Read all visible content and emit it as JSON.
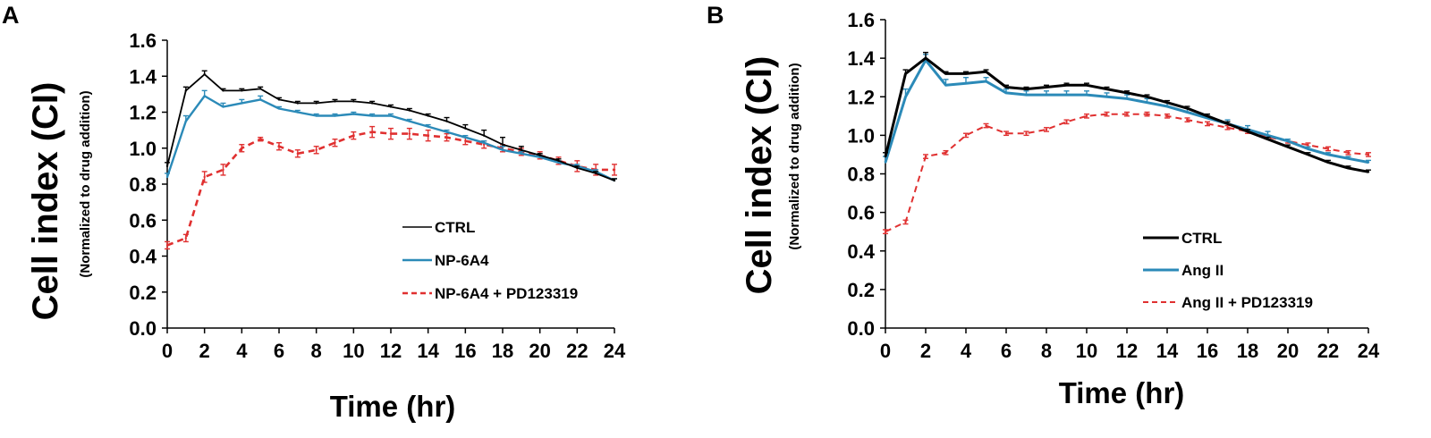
{
  "chart_data": [
    {
      "type": "line",
      "panel_label": "A",
      "xlabel": "Time (hr)",
      "ylabel": "Cell index (CI)",
      "ylabel_sub": "(Normalized to drug addition)",
      "xlim": [
        0,
        24
      ],
      "ylim": [
        0.0,
        1.6
      ],
      "xticks": [
        "0",
        "2",
        "4",
        "6",
        "8",
        "10",
        "12",
        "14",
        "16",
        "18",
        "20",
        "22",
        "24"
      ],
      "yticks": [
        "0.0",
        "0.2",
        "0.4",
        "0.6",
        "0.8",
        "1.0",
        "1.2",
        "1.4",
        "1.6"
      ],
      "legend_position": "bottom-right",
      "x": [
        0,
        1,
        2,
        3,
        4,
        5,
        6,
        7,
        8,
        9,
        10,
        11,
        12,
        13,
        14,
        15,
        16,
        17,
        18,
        19,
        20,
        21,
        22,
        23,
        24
      ],
      "series": [
        {
          "name": "CTRL",
          "color": "#000000",
          "style": "solid",
          "values": [
            0.9,
            1.32,
            1.41,
            1.32,
            1.32,
            1.33,
            1.27,
            1.25,
            1.25,
            1.26,
            1.26,
            1.25,
            1.23,
            1.21,
            1.18,
            1.15,
            1.11,
            1.07,
            1.02,
            0.99,
            0.96,
            0.93,
            0.89,
            0.86,
            0.82
          ],
          "errors": [
            0.02,
            0.02,
            0.02,
            0.01,
            0.01,
            0.01,
            0.01,
            0.01,
            0.01,
            0.01,
            0.01,
            0.01,
            0.01,
            0.01,
            0.01,
            0.02,
            0.02,
            0.03,
            0.04,
            0.02,
            0.01,
            0.01,
            0.01,
            0.01,
            0.01
          ]
        },
        {
          "name": "NP-6A4",
          "color": "#2b8ab8",
          "style": "solid",
          "values": [
            0.84,
            1.15,
            1.29,
            1.23,
            1.25,
            1.27,
            1.22,
            1.2,
            1.18,
            1.18,
            1.19,
            1.18,
            1.18,
            1.15,
            1.12,
            1.09,
            1.06,
            1.03,
            0.99,
            0.97,
            0.95,
            0.92,
            0.9,
            0.87,
            0.82
          ],
          "errors": [
            0.02,
            0.03,
            0.03,
            0.02,
            0.02,
            0.02,
            0.01,
            0.01,
            0.01,
            0.01,
            0.01,
            0.01,
            0.01,
            0.01,
            0.01,
            0.01,
            0.01,
            0.01,
            0.02,
            0.01,
            0.01,
            0.01,
            0.01,
            0.01,
            0.01
          ]
        },
        {
          "name": "NP-6A4 + PD123319",
          "color": "#e03030",
          "style": "dashed",
          "values": [
            0.46,
            0.5,
            0.84,
            0.88,
            1.0,
            1.05,
            1.01,
            0.97,
            0.99,
            1.03,
            1.07,
            1.09,
            1.08,
            1.08,
            1.07,
            1.06,
            1.04,
            1.02,
            1.0,
            0.98,
            0.96,
            0.93,
            0.9,
            0.88,
            0.88
          ],
          "errors": [
            0.02,
            0.02,
            0.03,
            0.03,
            0.02,
            0.01,
            0.02,
            0.02,
            0.02,
            0.02,
            0.02,
            0.03,
            0.03,
            0.03,
            0.03,
            0.02,
            0.02,
            0.02,
            0.02,
            0.02,
            0.02,
            0.02,
            0.03,
            0.03,
            0.03
          ]
        }
      ]
    },
    {
      "type": "line",
      "panel_label": "B",
      "xlabel": "Time (hr)",
      "ylabel": "Cell index (CI)",
      "ylabel_sub": "(Normalized to drug addition)",
      "xlim": [
        0,
        24
      ],
      "ylim": [
        0.0,
        1.6
      ],
      "xticks": [
        "0",
        "2",
        "4",
        "6",
        "8",
        "10",
        "12",
        "14",
        "16",
        "18",
        "20",
        "22",
        "24"
      ],
      "yticks": [
        "0.0",
        "0.2",
        "0.4",
        "0.6",
        "0.8",
        "1.0",
        "1.2",
        "1.4",
        "1.6"
      ],
      "legend_position": "bottom-left",
      "x": [
        0,
        1,
        2,
        3,
        4,
        5,
        6,
        7,
        8,
        9,
        10,
        11,
        12,
        13,
        14,
        15,
        16,
        17,
        18,
        19,
        20,
        21,
        22,
        23,
        24
      ],
      "series": [
        {
          "name": "CTRL",
          "color": "#000000",
          "style": "solid",
          "values": [
            0.89,
            1.32,
            1.4,
            1.32,
            1.32,
            1.33,
            1.25,
            1.24,
            1.25,
            1.26,
            1.26,
            1.24,
            1.22,
            1.2,
            1.17,
            1.14,
            1.1,
            1.06,
            1.02,
            0.98,
            0.94,
            0.9,
            0.86,
            0.83,
            0.81
          ],
          "errors": [
            0.02,
            0.02,
            0.03,
            0.01,
            0.01,
            0.01,
            0.01,
            0.01,
            0.01,
            0.01,
            0.01,
            0.01,
            0.01,
            0.01,
            0.01,
            0.01,
            0.01,
            0.01,
            0.01,
            0.01,
            0.01,
            0.01,
            0.01,
            0.01,
            0.01
          ]
        },
        {
          "name": "Ang II",
          "color": "#2b8ab8",
          "style": "solid",
          "values": [
            0.86,
            1.2,
            1.39,
            1.26,
            1.27,
            1.28,
            1.22,
            1.21,
            1.21,
            1.21,
            1.21,
            1.2,
            1.19,
            1.17,
            1.15,
            1.12,
            1.09,
            1.06,
            1.03,
            1.0,
            0.97,
            0.93,
            0.9,
            0.88,
            0.86
          ],
          "errors": [
            0.03,
            0.04,
            0.03,
            0.03,
            0.03,
            0.02,
            0.02,
            0.02,
            0.02,
            0.02,
            0.02,
            0.02,
            0.02,
            0.02,
            0.02,
            0.02,
            0.02,
            0.02,
            0.02,
            0.02,
            0.01,
            0.01,
            0.01,
            0.01,
            0.01
          ]
        },
        {
          "name": "Ang II + PD123319",
          "color": "#e03030",
          "style": "dashed",
          "values": [
            0.5,
            0.55,
            0.89,
            0.91,
            1.0,
            1.05,
            1.01,
            1.01,
            1.03,
            1.07,
            1.1,
            1.11,
            1.11,
            1.11,
            1.1,
            1.08,
            1.06,
            1.04,
            1.02,
            0.99,
            0.97,
            0.95,
            0.93,
            0.91,
            0.9
          ],
          "errors": [
            0.01,
            0.01,
            0.01,
            0.01,
            0.01,
            0.01,
            0.01,
            0.01,
            0.01,
            0.01,
            0.01,
            0.01,
            0.01,
            0.01,
            0.01,
            0.01,
            0.01,
            0.01,
            0.01,
            0.01,
            0.01,
            0.01,
            0.01,
            0.01,
            0.01
          ]
        }
      ]
    }
  ]
}
